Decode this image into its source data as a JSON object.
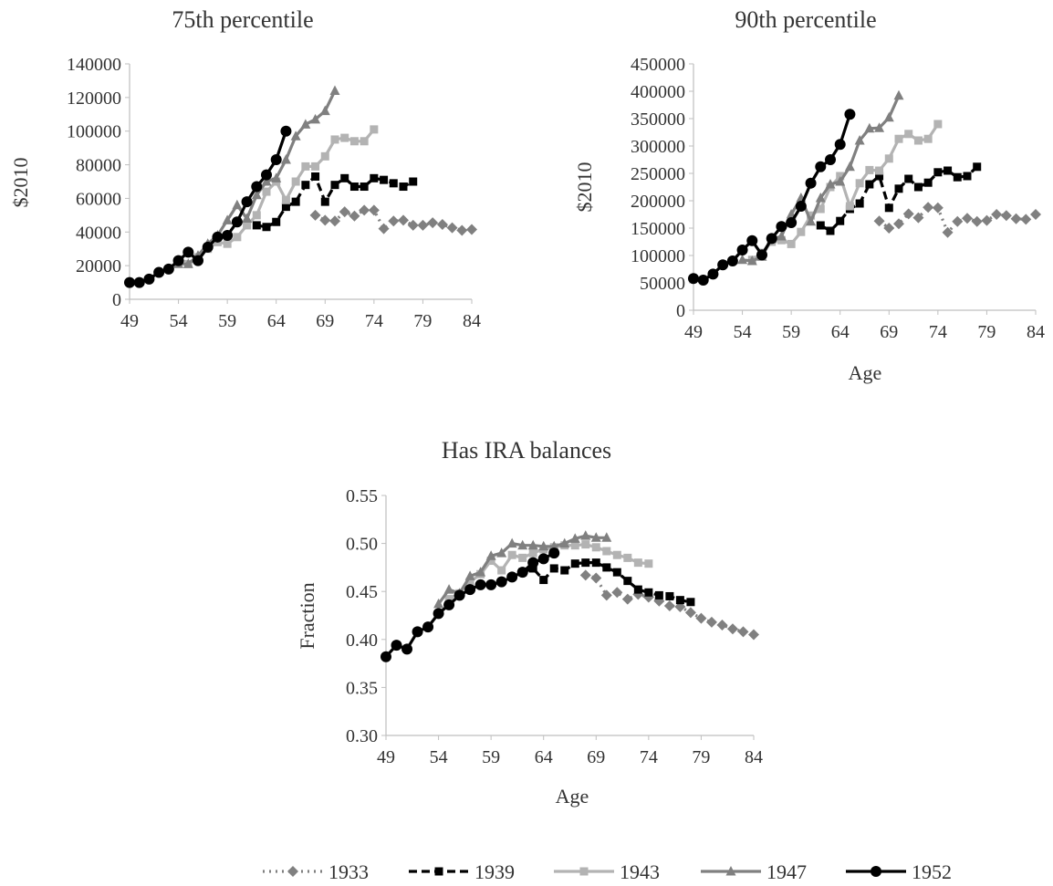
{
  "legend": [
    {
      "name": "1933",
      "color": "#808080",
      "marker": "diamond",
      "dash": "dotted"
    },
    {
      "name": "1939",
      "color": "#000000",
      "marker": "square",
      "dash": "dashed"
    },
    {
      "name": "1943",
      "color": "#b3b3b3",
      "marker": "square",
      "dash": "solid"
    },
    {
      "name": "1947",
      "color": "#808080",
      "marker": "triangle",
      "dash": "solid"
    },
    {
      "name": "1952",
      "color": "#000000",
      "marker": "circle",
      "dash": "solid"
    }
  ],
  "chart_data": [
    {
      "type": "line",
      "title": "75th percentile",
      "xlabel": "",
      "ylabel": "$2010",
      "xlim": [
        49,
        84
      ],
      "ylim": [
        0,
        140000
      ],
      "xticks": [
        49,
        54,
        59,
        64,
        69,
        74,
        79,
        84
      ],
      "yticks": [
        0,
        20000,
        40000,
        60000,
        80000,
        100000,
        120000,
        140000
      ],
      "grid": false,
      "series": [
        {
          "name": "1933",
          "x": [
            68,
            69,
            70,
            71,
            72,
            73,
            74,
            75,
            76,
            77,
            78,
            79,
            80,
            81,
            82,
            83,
            84
          ],
          "y": [
            50000,
            47000,
            46500,
            52000,
            49500,
            53000,
            53000,
            42000,
            46500,
            47000,
            44000,
            44000,
            45500,
            44500,
            42500,
            41000,
            41500
          ]
        },
        {
          "name": "1939",
          "x": [
            62,
            63,
            64,
            65,
            66,
            67,
            68,
            69,
            70,
            71,
            72,
            73,
            74,
            75,
            76,
            77,
            78
          ],
          "y": [
            44000,
            43000,
            46000,
            55000,
            58000,
            68000,
            73000,
            58000,
            68000,
            72000,
            67000,
            67000,
            72000,
            71000,
            69000,
            67000,
            70000
          ]
        },
        {
          "name": "1943",
          "x": [
            55,
            56,
            57,
            58,
            59,
            60,
            61,
            62,
            63,
            64,
            65,
            66,
            67,
            68,
            69,
            70,
            71,
            72,
            73,
            74
          ],
          "y": [
            21000,
            25000,
            30000,
            34000,
            33000,
            37000,
            44000,
            50000,
            64000,
            70000,
            59000,
            70000,
            79000,
            79000,
            85000,
            95000,
            96000,
            94000,
            94000,
            101000
          ]
        },
        {
          "name": "1947",
          "x": [
            54,
            55,
            56,
            57,
            58,
            59,
            60,
            61,
            62,
            63,
            64,
            65,
            66,
            67,
            68,
            69,
            70
          ],
          "y": [
            21000,
            21000,
            26000,
            33000,
            38000,
            47000,
            56000,
            48000,
            62000,
            70000,
            72000,
            83000,
            97000,
            104000,
            107000,
            112000,
            124000
          ]
        },
        {
          "name": "1952",
          "x": [
            49,
            50,
            51,
            52,
            53,
            54,
            55,
            56,
            57,
            58,
            59,
            60,
            61,
            62,
            63,
            64,
            65
          ],
          "y": [
            10000,
            10000,
            12000,
            16000,
            18000,
            23000,
            28000,
            23000,
            31000,
            37000,
            38000,
            46000,
            58000,
            67000,
            74000,
            83000,
            100000
          ]
        }
      ]
    },
    {
      "type": "line",
      "title": "90th percentile",
      "xlabel": "Age",
      "ylabel": "$2010",
      "xlim": [
        49,
        84
      ],
      "ylim": [
        0,
        450000
      ],
      "xticks": [
        49,
        54,
        59,
        64,
        69,
        74,
        79,
        84
      ],
      "yticks": [
        0,
        50000,
        100000,
        150000,
        200000,
        250000,
        300000,
        350000,
        400000,
        450000
      ],
      "grid": false,
      "series": [
        {
          "name": "1933",
          "x": [
            68,
            69,
            70,
            71,
            72,
            73,
            74,
            75,
            76,
            77,
            78,
            79,
            80,
            81,
            82,
            83,
            84
          ],
          "y": [
            163000,
            150000,
            158000,
            176000,
            169000,
            188000,
            187000,
            142000,
            162000,
            168000,
            162000,
            164000,
            175000,
            173000,
            167000,
            166000,
            175000
          ]
        },
        {
          "name": "1939",
          "x": [
            62,
            63,
            64,
            65,
            66,
            67,
            68,
            69,
            70,
            71,
            72,
            73,
            74,
            75,
            76,
            77,
            78
          ],
          "y": [
            155000,
            145000,
            163000,
            185000,
            195000,
            230000,
            245000,
            187000,
            222000,
            240000,
            225000,
            233000,
            252000,
            255000,
            243000,
            245000,
            262000
          ]
        },
        {
          "name": "1943",
          "x": [
            55,
            56,
            57,
            58,
            59,
            60,
            61,
            62,
            63,
            64,
            65,
            66,
            67,
            68,
            69,
            70,
            71,
            72,
            73,
            74
          ],
          "y": [
            92000,
            105000,
            125000,
            128000,
            121000,
            143000,
            173000,
            185000,
            225000,
            245000,
            190000,
            232000,
            256000,
            255000,
            277000,
            313000,
            322000,
            310000,
            313000,
            340000
          ]
        },
        {
          "name": "1947",
          "x": [
            54,
            55,
            56,
            57,
            58,
            59,
            60,
            61,
            62,
            63,
            64,
            65,
            66,
            67,
            68,
            69,
            70
          ],
          "y": [
            92000,
            90000,
            98000,
            130000,
            135000,
            175000,
            205000,
            162000,
            205000,
            230000,
            235000,
            262000,
            310000,
            332000,
            333000,
            352000,
            392000
          ]
        },
        {
          "name": "1952",
          "x": [
            49,
            50,
            51,
            52,
            53,
            54,
            55,
            56,
            57,
            58,
            59,
            60,
            61,
            62,
            63,
            64,
            65
          ],
          "y": [
            58000,
            55000,
            66000,
            83000,
            90000,
            110000,
            127000,
            101000,
            131000,
            153000,
            160000,
            190000,
            232000,
            262000,
            275000,
            303000,
            358000
          ]
        }
      ]
    },
    {
      "type": "line",
      "title": "Has IRA balances",
      "xlabel": "Age",
      "ylabel": "Fraction",
      "xlim": [
        49,
        84
      ],
      "ylim": [
        0.3,
        0.55
      ],
      "xticks": [
        49,
        54,
        59,
        64,
        69,
        74,
        79,
        84
      ],
      "yticks": [
        "0.30",
        "0.35",
        "0.40",
        "0.45",
        "0.50",
        "0.55"
      ],
      "grid": false,
      "series": [
        {
          "name": "1933",
          "x": [
            68,
            69,
            70,
            71,
            72,
            73,
            74,
            75,
            76,
            77,
            78,
            79,
            80,
            81,
            82,
            83,
            84
          ],
          "y": [
            0.467,
            0.464,
            0.446,
            0.449,
            0.442,
            0.447,
            0.444,
            0.44,
            0.435,
            0.434,
            0.428,
            0.422,
            0.418,
            0.415,
            0.411,
            0.408,
            0.405
          ]
        },
        {
          "name": "1939",
          "x": [
            62,
            63,
            64,
            65,
            66,
            67,
            68,
            69,
            70,
            71,
            72,
            73,
            74,
            75,
            76,
            77,
            78
          ],
          "y": [
            0.47,
            0.474,
            0.462,
            0.474,
            0.472,
            0.479,
            0.48,
            0.48,
            0.475,
            0.47,
            0.461,
            0.452,
            0.449,
            0.446,
            0.445,
            0.441,
            0.439
          ]
        },
        {
          "name": "1943",
          "x": [
            55,
            56,
            57,
            58,
            59,
            60,
            61,
            62,
            63,
            64,
            65,
            66,
            67,
            68,
            69,
            70,
            71,
            72,
            73,
            74
          ],
          "y": [
            0.442,
            0.448,
            0.46,
            0.468,
            0.482,
            0.472,
            0.488,
            0.485,
            0.49,
            0.494,
            0.496,
            0.498,
            0.498,
            0.499,
            0.496,
            0.492,
            0.488,
            0.485,
            0.48,
            0.479
          ]
        },
        {
          "name": "1947",
          "x": [
            54,
            55,
            56,
            57,
            58,
            59,
            60,
            61,
            62,
            63,
            64,
            65,
            66,
            67,
            68,
            69,
            70
          ],
          "y": [
            0.437,
            0.452,
            0.448,
            0.466,
            0.47,
            0.487,
            0.49,
            0.5,
            0.498,
            0.498,
            0.497,
            0.497,
            0.5,
            0.505,
            0.508,
            0.506,
            0.506
          ]
        },
        {
          "name": "1952",
          "x": [
            49,
            50,
            51,
            52,
            53,
            54,
            55,
            56,
            57,
            58,
            59,
            60,
            61,
            62,
            63,
            64,
            65
          ],
          "y": [
            0.382,
            0.394,
            0.39,
            0.408,
            0.413,
            0.427,
            0.436,
            0.446,
            0.452,
            0.457,
            0.457,
            0.46,
            0.465,
            0.47,
            0.48,
            0.484,
            0.49
          ]
        }
      ]
    }
  ]
}
